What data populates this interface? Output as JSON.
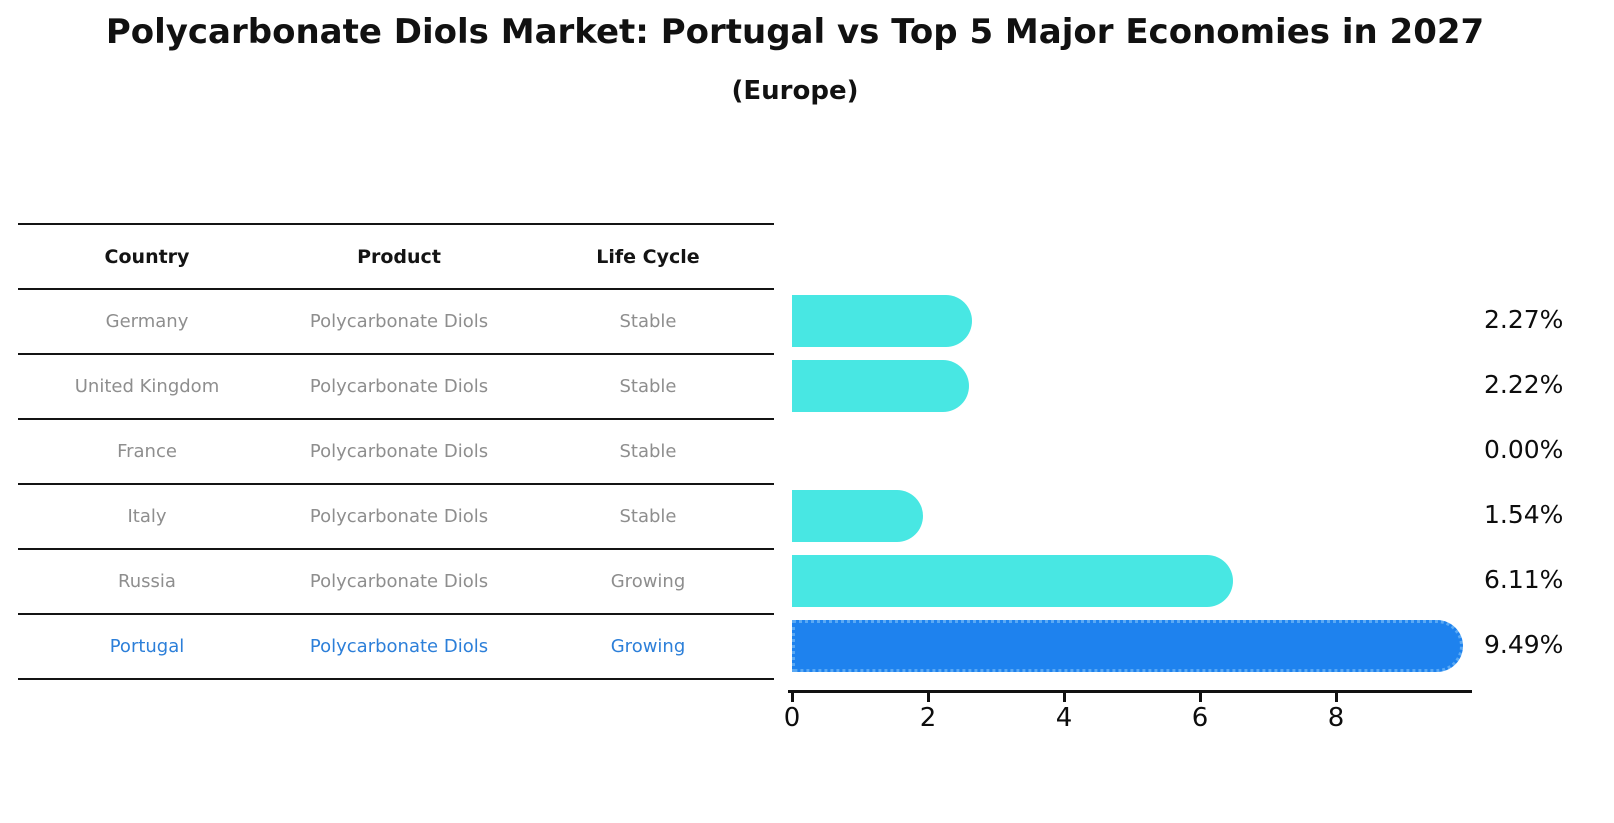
{
  "title": "Polycarbonate Diols Market: Portugal vs Top 5 Major Economies in 2027",
  "subtitle": "(Europe)",
  "table": {
    "headers": [
      "Country",
      "Product",
      "Life Cycle"
    ],
    "rows": [
      {
        "country": "Germany",
        "product": "Polycarbonate Diols",
        "life_cycle": "Stable",
        "highlight": false
      },
      {
        "country": "United Kingdom",
        "product": "Polycarbonate Diols",
        "life_cycle": "Stable",
        "highlight": false
      },
      {
        "country": "France",
        "product": "Polycarbonate Diols",
        "life_cycle": "Stable",
        "highlight": false
      },
      {
        "country": "Italy",
        "product": "Polycarbonate Diols",
        "life_cycle": "Stable",
        "highlight": false
      },
      {
        "country": "Russia",
        "product": "Polycarbonate Diols",
        "life_cycle": "Growing",
        "highlight": false
      },
      {
        "country": "Portugal",
        "product": "Polycarbonate Diols",
        "life_cycle": "Growing",
        "highlight": true
      }
    ]
  },
  "chart_data": {
    "type": "bar",
    "orientation": "horizontal",
    "categories": [
      "Germany",
      "United Kingdom",
      "France",
      "Italy",
      "Russia",
      "Portugal"
    ],
    "values": [
      2.27,
      2.22,
      0.0,
      1.54,
      6.11,
      9.49
    ],
    "value_labels": [
      "2.27%",
      "2.22%",
      "0.00%",
      "1.54%",
      "6.11%",
      "9.49%"
    ],
    "x_tick_values": [
      0,
      2,
      4,
      6,
      8
    ],
    "x_tick_labels": [
      "0",
      "2",
      "4",
      "6",
      "8"
    ],
    "xlim": [
      0,
      10
    ],
    "highlight_index": 5,
    "legend": "none",
    "grid": false
  },
  "colors": {
    "bar": "#48e7e3",
    "highlight_bar": "#1e82ee",
    "highlight_border": "#5aa9f4",
    "highlight_text": "#2c7fd9",
    "table_text": "#8e8e8e",
    "header_text": "#141414",
    "axis": "#111111"
  }
}
